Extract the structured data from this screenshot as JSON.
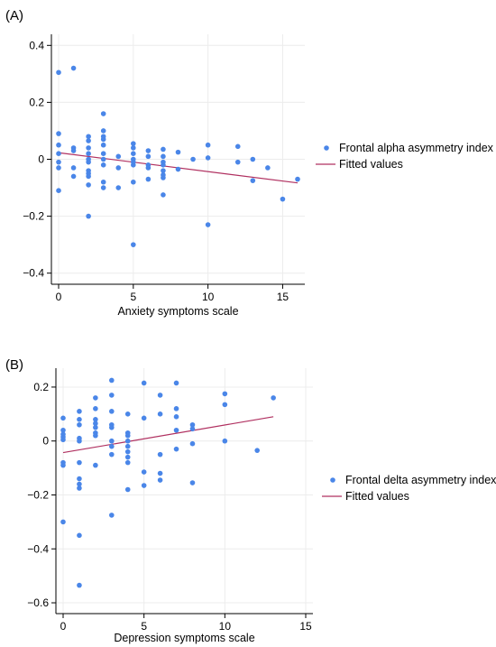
{
  "chart_data": [
    {
      "type": "scatter",
      "panel_label": "(A)",
      "xlabel": "Anxiety symptoms scale",
      "ylabel": "",
      "xlim": [
        0,
        16
      ],
      "ylim": [
        -0.42,
        0.42
      ],
      "xticks": [
        0,
        5,
        10,
        15
      ],
      "yticks": [
        -0.4,
        -0.2,
        0,
        0.2,
        0.4
      ],
      "ytick_labels": [
        "−0.4",
        "−0.2",
        "0",
        "0.2",
        "0.4"
      ],
      "grid": true,
      "legend_position": "right",
      "series": [
        {
          "name": "Frontal alpha asymmetry index",
          "kind": "points",
          "color": "#4a86e8",
          "points": [
            [
              0,
              0.305
            ],
            [
              0,
              0.09
            ],
            [
              0,
              0.05
            ],
            [
              0,
              0.02
            ],
            [
              0,
              -0.01
            ],
            [
              0,
              -0.03
            ],
            [
              0,
              -0.11
            ],
            [
              1,
              0.32
            ],
            [
              1,
              0.04
            ],
            [
              1,
              0.03
            ],
            [
              1,
              -0.03
            ],
            [
              1,
              -0.06
            ],
            [
              2,
              0.08
            ],
            [
              2,
              0.065
            ],
            [
              2,
              0.04
            ],
            [
              2,
              0.02
            ],
            [
              2,
              0.0
            ],
            [
              2,
              -0.01
            ],
            [
              2,
              -0.04
            ],
            [
              2,
              -0.05
            ],
            [
              2,
              -0.06
            ],
            [
              2,
              -0.09
            ],
            [
              2,
              -0.2
            ],
            [
              3,
              0.16
            ],
            [
              3,
              0.1
            ],
            [
              3,
              0.08
            ],
            [
              3,
              0.07
            ],
            [
              3,
              0.05
            ],
            [
              3,
              0.02
            ],
            [
              3,
              0.0
            ],
            [
              3,
              -0.02
            ],
            [
              3,
              -0.08
            ],
            [
              3,
              -0.1
            ],
            [
              4,
              0.01
            ],
            [
              4,
              -0.03
            ],
            [
              4,
              -0.1
            ],
            [
              5,
              0.055
            ],
            [
              5,
              0.04
            ],
            [
              5,
              0.02
            ],
            [
              5,
              0.0
            ],
            [
              5,
              -0.01
            ],
            [
              5,
              -0.02
            ],
            [
              5,
              -0.08
            ],
            [
              5,
              -0.3
            ],
            [
              6,
              0.03
            ],
            [
              6,
              0.01
            ],
            [
              6,
              -0.02
            ],
            [
              6,
              -0.03
            ],
            [
              6,
              -0.07
            ],
            [
              7,
              0.035
            ],
            [
              7,
              0.01
            ],
            [
              7,
              -0.01
            ],
            [
              7,
              -0.02
            ],
            [
              7,
              -0.04
            ],
            [
              7,
              -0.055
            ],
            [
              7,
              -0.065
            ],
            [
              7,
              -0.125
            ],
            [
              8,
              0.025
            ],
            [
              8,
              -0.035
            ],
            [
              9,
              0.0
            ],
            [
              10,
              0.05
            ],
            [
              10,
              0.005
            ],
            [
              10,
              -0.23
            ],
            [
              12,
              0.045
            ],
            [
              12,
              -0.01
            ],
            [
              13,
              0.0
            ],
            [
              13,
              -0.075
            ],
            [
              14,
              -0.03
            ],
            [
              15,
              -0.14
            ],
            [
              16,
              -0.07
            ]
          ]
        },
        {
          "name": "Fitted values",
          "kind": "line",
          "color": "#b03060",
          "points": [
            [
              0,
              0.023
            ],
            [
              16,
              -0.083
            ]
          ]
        }
      ]
    },
    {
      "type": "scatter",
      "panel_label": "(B)",
      "xlabel": "Depression symptoms scale",
      "ylabel": "",
      "xlim": [
        0,
        15
      ],
      "ylim": [
        -0.62,
        0.25
      ],
      "xticks": [
        0,
        5,
        10,
        15
      ],
      "yticks": [
        -0.6,
        -0.4,
        -0.2,
        0,
        0.2
      ],
      "ytick_labels": [
        "−0.6",
        "−0.4",
        "−0.2",
        "0",
        "0.2"
      ],
      "grid": true,
      "legend_position": "right",
      "series": [
        {
          "name": "Frontal delta asymmetry index",
          "kind": "points",
          "color": "#4a86e8",
          "points": [
            [
              0,
              0.085
            ],
            [
              0,
              0.04
            ],
            [
              0,
              0.025
            ],
            [
              0,
              0.015
            ],
            [
              0,
              0.005
            ],
            [
              0,
              -0.08
            ],
            [
              0,
              -0.09
            ],
            [
              0,
              -0.3
            ],
            [
              1,
              0.11
            ],
            [
              1,
              0.08
            ],
            [
              1,
              0.06
            ],
            [
              1,
              0.01
            ],
            [
              1,
              0.0
            ],
            [
              1,
              -0.08
            ],
            [
              1,
              -0.14
            ],
            [
              1,
              -0.16
            ],
            [
              1,
              -0.175
            ],
            [
              1,
              -0.35
            ],
            [
              1,
              -0.535
            ],
            [
              2,
              0.16
            ],
            [
              2,
              0.12
            ],
            [
              2,
              0.08
            ],
            [
              2,
              0.065
            ],
            [
              2,
              0.05
            ],
            [
              2,
              0.03
            ],
            [
              2,
              0.02
            ],
            [
              2,
              -0.09
            ],
            [
              3,
              0.225
            ],
            [
              3,
              0.17
            ],
            [
              3,
              0.11
            ],
            [
              3,
              0.06
            ],
            [
              3,
              0.05
            ],
            [
              3,
              0.0
            ],
            [
              3,
              -0.02
            ],
            [
              3,
              -0.05
            ],
            [
              3,
              -0.275
            ],
            [
              4,
              0.1
            ],
            [
              4,
              0.03
            ],
            [
              4,
              0.02
            ],
            [
              4,
              0.0
            ],
            [
              4,
              -0.02
            ],
            [
              4,
              -0.04
            ],
            [
              4,
              -0.06
            ],
            [
              4,
              -0.08
            ],
            [
              4,
              -0.18
            ],
            [
              5,
              0.215
            ],
            [
              5,
              0.085
            ],
            [
              5,
              -0.115
            ],
            [
              5,
              -0.165
            ],
            [
              6,
              0.17
            ],
            [
              6,
              0.1
            ],
            [
              6,
              -0.05
            ],
            [
              6,
              -0.12
            ],
            [
              6,
              -0.145
            ],
            [
              7,
              0.215
            ],
            [
              7,
              0.12
            ],
            [
              7,
              0.09
            ],
            [
              7,
              0.04
            ],
            [
              7,
              -0.03
            ],
            [
              8,
              0.06
            ],
            [
              8,
              0.045
            ],
            [
              8,
              -0.01
            ],
            [
              8,
              -0.155
            ],
            [
              10,
              0.175
            ],
            [
              10,
              0.135
            ],
            [
              10,
              0.0
            ],
            [
              12,
              -0.035
            ],
            [
              13,
              0.16
            ]
          ]
        },
        {
          "name": "Fitted values",
          "kind": "line",
          "color": "#b03060",
          "points": [
            [
              0,
              -0.043
            ],
            [
              13,
              0.09
            ]
          ]
        }
      ]
    }
  ]
}
